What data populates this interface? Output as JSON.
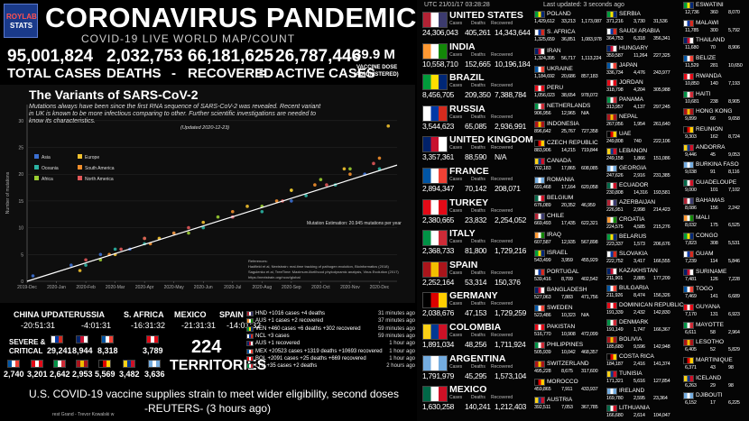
{
  "header": {
    "logo": [
      "ROYLAB",
      "STATS"
    ],
    "title": "CORONAVIRUS PANDEMIC",
    "subtitle": "COVID-19 LIVE WORLD MAP/COUNT"
  },
  "stats": {
    "items": [
      {
        "value": "95,001,824",
        "label": "TOTAL CASES"
      },
      {
        "value": "2,032,753",
        "label": "DEATHS"
      },
      {
        "value": "66,181,625",
        "label": "RECOVERED"
      },
      {
        "value": "26,787,446",
        "label": "ACTIVE CASES"
      }
    ],
    "operators": [
      "-",
      "-",
      "="
    ],
    "vaccine": {
      "value": "39.9 M",
      "label": [
        "VACCINE DOSE",
        "(ADMINISTERED)"
      ]
    }
  },
  "variants": {
    "title": "The Variants of SARS-CoV-2",
    "description": "Mutations always have been since the first RNA sequence of SARS-CoV-2 was revealed. Recent variant in UK is known to be more infectious comparing to other. Further scientific investigations are needed to know its characteristics.",
    "updated": "(Updated 2020-12-23)",
    "note": "Mutation Estimation: 20.945 mutations per year",
    "references": [
      "References:",
      "Hadfield et al, Nextstrain: real-time tracking of pathogen evolution, Bioinformatics (2018)",
      "Sagulenko et al, TreeTime: Maximum-likelihood phylodynamic analysis, Virus Evolution (2017)",
      "https://nextstrain.org/ncov/global"
    ],
    "chart_data": {
      "type": "scatter",
      "y_label": "Number of mutations",
      "xlim": [
        0,
        12.6
      ],
      "ylim": [
        0,
        33
      ],
      "xticks": [
        {
          "value": 0,
          "label": "2019-Dec"
        },
        {
          "value": 1,
          "label": "2020-Jan"
        },
        {
          "value": 2,
          "label": "2020-Feb"
        },
        {
          "value": 3,
          "label": "2020-Mar"
        },
        {
          "value": 4,
          "label": "2020-Apr"
        },
        {
          "value": 5,
          "label": "2020-May"
        },
        {
          "value": 6,
          "label": "2020-Jun"
        },
        {
          "value": 7,
          "label": "2020-Jul"
        },
        {
          "value": 8,
          "label": "2020-Aug"
        },
        {
          "value": 9,
          "label": "2020-Sep"
        },
        {
          "value": 10,
          "label": "2020-Oct"
        },
        {
          "value": 11,
          "label": "2020-Nov"
        },
        {
          "value": 12,
          "label": "2020-Dec"
        }
      ],
      "yticks": [
        0,
        5,
        10,
        15,
        20,
        25,
        30
      ],
      "series": [
        {
          "name": "Asia",
          "color": "#3b6fd1",
          "x": [
            0.2,
            1.5,
            2.5,
            3.5,
            5,
            7,
            9,
            11.5
          ],
          "values": [
            1,
            3,
            5,
            6,
            9,
            12,
            15,
            20
          ]
        },
        {
          "name": "Oceania",
          "color": "#2bb3a3",
          "x": [
            2,
            3,
            4,
            6,
            8,
            9.5,
            10.5,
            12
          ],
          "values": [
            3,
            6,
            7,
            10,
            13,
            16,
            18,
            21
          ]
        },
        {
          "name": "Africa",
          "color": "#9acd32",
          "x": [
            2.5,
            4,
            5.5,
            6.5,
            8,
            9,
            10,
            11
          ],
          "values": [
            4,
            8,
            9,
            12,
            14,
            17,
            19,
            21
          ]
        },
        {
          "name": "Europe",
          "color": "#f2c12e",
          "x": [
            1.8,
            3,
            4.5,
            6,
            7.5,
            9,
            10.8,
            12.3
          ],
          "values": [
            2,
            5,
            8,
            11,
            14,
            17,
            21,
            29
          ]
        },
        {
          "name": "South America",
          "color": "#f28e2b",
          "x": [
            2.8,
            4.2,
            5,
            7,
            8.5,
            9.8,
            11,
            12
          ],
          "values": [
            5,
            7,
            9,
            13,
            15,
            18,
            20,
            23
          ]
        },
        {
          "name": "North America",
          "color": "#e15759",
          "x": [
            2,
            3.2,
            4,
            5.5,
            7,
            8.7,
            10.2,
            11.8
          ],
          "values": [
            4,
            6,
            8,
            10,
            12,
            15,
            18,
            22
          ]
        }
      ],
      "trend": {
        "color": "#ffffff",
        "x": [
          0,
          12.6
        ],
        "values": [
          0,
          21.7
        ]
      }
    }
  },
  "timezones": [
    {
      "name": "CHINA UPDATE",
      "time": "-20:51:31"
    },
    {
      "name": "RUSSIA",
      "time": "-4:01:31"
    },
    {
      "name": "S. AFRICA",
      "time": "-16:31:32"
    },
    {
      "name": "MEXICO",
      "time": "-21:31:31"
    },
    {
      "name": "SPAIN",
      "time": "-14:01:32"
    }
  ],
  "severe": {
    "label": [
      "SEVERE &",
      "CRITICAL"
    ],
    "row1": [
      "29,241",
      "8,944",
      "8,318",
      "3,789"
    ],
    "row2": [
      "2,740",
      "3,201",
      "2,642",
      "2,953",
      "5,569",
      "3,482",
      "3,636"
    ]
  },
  "territories": {
    "value": "224",
    "label": "TERRITORIES"
  },
  "updates": [
    {
      "text": "HND +1016 cases +4 deaths",
      "time": "31 minutes ago"
    },
    {
      "text": "AUS +1 cases +2 recovered",
      "time": "37 minutes ago"
    },
    {
      "text": "VEN +460 cases +6 deaths +302 recovered",
      "time": "59 minutes ago"
    },
    {
      "text": "NCL +3 cases",
      "time": "59 minutes ago"
    },
    {
      "text": "AUS +1 recovered",
      "time": "1 hour ago"
    },
    {
      "text": "MEX +20523 cases +1319 deaths +10693 recovered",
      "time": "1 hour ago"
    },
    {
      "text": "BOL +2091 cases +25 deaths +669 recovered",
      "time": "1 hour ago"
    },
    {
      "text": "LTU +35 cases +2 deaths",
      "time": "2 hours ago"
    }
  ],
  "ticker": {
    "headline": "U.S. COVID-19 vaccine supplies strain to meet wider eligibility, second doses",
    "source": "-REUTERS- (3 hours ago)",
    "footer": "rest Grand - Trevor Kowalski w"
  },
  "panel": {
    "utc": "UTC 21/01/17 03:28:28",
    "updated": "Last updated: 3 seconds ago",
    "labels": [
      "Cases",
      "Deaths",
      "Recovered"
    ]
  },
  "major": [
    {
      "name": "UNITED STATES",
      "cases": "24,306,043",
      "deaths": "405,261",
      "recovered": "14,343,644"
    },
    {
      "name": "INDIA",
      "cases": "10,558,710",
      "deaths": "152,665",
      "recovered": "10,196,184"
    },
    {
      "name": "BRAZIL",
      "cases": "8,456,705",
      "deaths": "209,350",
      "recovered": "7,388,784"
    },
    {
      "name": "RUSSIA",
      "cases": "3,544,623",
      "deaths": "65,085",
      "recovered": "2,936,991"
    },
    {
      "name": "UNITED KINGDOM",
      "cases": "3,357,361",
      "deaths": "88,590",
      "recovered": "N/A"
    },
    {
      "name": "FRANCE",
      "cases": "2,894,347",
      "deaths": "70,142",
      "recovered": "208,071"
    },
    {
      "name": "TURKEY",
      "cases": "2,380,665",
      "deaths": "23,832",
      "recovered": "2,254,052"
    },
    {
      "name": "ITALY",
      "cases": "2,368,733",
      "deaths": "81,800",
      "recovered": "1,729,216"
    },
    {
      "name": "SPAIN",
      "cases": "2,252,164",
      "deaths": "53,314",
      "recovered": "150,376"
    },
    {
      "name": "GERMANY",
      "cases": "2,038,676",
      "deaths": "47,153",
      "recovered": "1,729,259"
    },
    {
      "name": "COLOMBIA",
      "cases": "1,891,034",
      "deaths": "48,256",
      "recovered": "1,711,924"
    },
    {
      "name": "ARGENTINA",
      "cases": "1,791,979",
      "deaths": "45,295",
      "recovered": "1,573,104"
    },
    {
      "name": "MEXICO",
      "cases": "1,630,258",
      "deaths": "140,241",
      "recovered": "1,212,403"
    }
  ],
  "list_a": [
    {
      "name": "POLAND",
      "cases": "1,429,612",
      "deaths": "33,213",
      "recovered": "1,173,087"
    },
    {
      "name": "S. AFRICA",
      "cases": "1,325,659",
      "deaths": "36,851",
      "recovered": "1,083,978"
    },
    {
      "name": "IRAN",
      "cases": "1,324,395",
      "deaths": "56,717",
      "recovered": "1,113,224"
    },
    {
      "name": "UKRAINE",
      "cases": "1,184,692",
      "deaths": "20,686",
      "recovered": "857,183"
    },
    {
      "name": "PERU",
      "cases": "1,056,023",
      "deaths": "38,654",
      "recovered": "978,072"
    },
    {
      "name": "NETHERLANDS",
      "cases": "906,956",
      "deaths": "12,965",
      "recovered": "N/A"
    },
    {
      "name": "INDONESIA",
      "cases": "896,642",
      "deaths": "25,767",
      "recovered": "727,358"
    },
    {
      "name": "CZECH REPUBLIC",
      "cases": "883,906",
      "deaths": "14,215",
      "recovered": "719,844"
    },
    {
      "name": "CANADA",
      "cases": "702,183",
      "deaths": "17,865",
      "recovered": "608,085"
    },
    {
      "name": "ROMANIA",
      "cases": "691,468",
      "deaths": "17,164",
      "recovered": "620,058"
    },
    {
      "name": "BELGIUM",
      "cases": "676,089",
      "deaths": "20,352",
      "recovered": "46,959"
    },
    {
      "name": "CHILE",
      "cases": "669,493",
      "deaths": "17,435",
      "recovered": "622,321"
    },
    {
      "name": "IRAQ",
      "cases": "607,587",
      "deaths": "12,935",
      "recovered": "567,898"
    },
    {
      "name": "ISRAEL",
      "cases": "543,499",
      "deaths": "3,959",
      "recovered": "455,929"
    },
    {
      "name": "PORTUGAL",
      "cases": "539,416",
      "deaths": "8,709",
      "recovered": "402,542"
    },
    {
      "name": "BANGLADESH",
      "cases": "527,063",
      "deaths": "7,883",
      "recovered": "471,756"
    },
    {
      "name": "SWEDEN",
      "cases": "523,486",
      "deaths": "10,323",
      "recovered": "N/A"
    },
    {
      "name": "PAKISTAN",
      "cases": "516,770",
      "deaths": "10,908",
      "recovered": "472,099"
    },
    {
      "name": "PHILIPPINES",
      "cases": "505,939",
      "deaths": "10,042",
      "recovered": "468,357"
    },
    {
      "name": "SWITZERLAND",
      "cases": "495,228",
      "deaths": "8,675",
      "recovered": "317,600"
    },
    {
      "name": "MOROCCO",
      "cases": "459,865",
      "deaths": "7,911",
      "recovered": "433,937"
    },
    {
      "name": "AUSTRIA",
      "cases": "392,511",
      "deaths": "7,053",
      "recovered": "367,785"
    }
  ],
  "list_b": [
    {
      "name": "SERBIA",
      "cases": "371,216",
      "deaths": "3,730",
      "recovered": "31,536"
    },
    {
      "name": "SAUDI ARABIA",
      "cases": "364,753",
      "deaths": "6,318",
      "recovered": "356,341"
    },
    {
      "name": "HUNGARY",
      "cases": "359,587",
      "deaths": "11,264",
      "recovered": "227,325"
    },
    {
      "name": "JAPAN",
      "cases": "336,734",
      "deaths": "4,476",
      "recovered": "243,977"
    },
    {
      "name": "JORDAN",
      "cases": "318,798",
      "deaths": "4,204",
      "recovered": "305,988"
    },
    {
      "name": "PANAMA",
      "cases": "313,957",
      "deaths": "4,137",
      "recovered": "297,245"
    },
    {
      "name": "NEPAL",
      "cases": "267,056",
      "deaths": "1,954",
      "recovered": "261,640"
    },
    {
      "name": "UAE",
      "cases": "249,808",
      "deaths": "740",
      "recovered": "222,106"
    },
    {
      "name": "LEBANON",
      "cases": "249,158",
      "deaths": "1,866",
      "recovered": "151,086"
    },
    {
      "name": "GEORGIA",
      "cases": "247,626",
      "deaths": "2,916",
      "recovered": "231,385"
    },
    {
      "name": "ECUADOR",
      "cases": "230,808",
      "deaths": "14,316",
      "recovered": "193,581"
    },
    {
      "name": "AZERBAIJAN",
      "cases": "226,951",
      "deaths": "2,998",
      "recovered": "214,423"
    },
    {
      "name": "CROATIA",
      "cases": "224,575",
      "deaths": "4,585",
      "recovered": "215,276"
    },
    {
      "name": "BELARUS",
      "cases": "223,337",
      "deaths": "1,573",
      "recovered": "206,676"
    },
    {
      "name": "SLOVAKIA",
      "cases": "222,752",
      "deaths": "3,417",
      "recovered": "166,555"
    },
    {
      "name": "KAZAKHSTAN",
      "cases": "211,901",
      "deaths": "2,885",
      "recovered": "177,209"
    },
    {
      "name": "BULGARIA",
      "cases": "211,926",
      "deaths": "8,474",
      "recovered": "156,326"
    },
    {
      "name": "DOMINICAN REPUBLIC",
      "cases": "191,339",
      "deaths": "2,432",
      "recovered": "142,830"
    },
    {
      "name": "DENMARK",
      "cases": "191,149",
      "deaths": "1,747",
      "recovered": "166,367"
    },
    {
      "name": "BOLIVIA",
      "cases": "185,680",
      "deaths": "9,596",
      "recovered": "142,948"
    },
    {
      "name": "COSTA RICA",
      "cases": "184,187",
      "deaths": "2,416",
      "recovered": "141,374"
    },
    {
      "name": "TUNISIA",
      "cases": "171,321",
      "deaths": "5,616",
      "recovered": "127,854"
    },
    {
      "name": "IRELAND",
      "cases": "169,780",
      "deaths": "2,595",
      "recovered": "23,364"
    },
    {
      "name": "LITHUANIA",
      "cases": "166,680",
      "deaths": "2,614",
      "recovered": "104,047"
    }
  ],
  "list_c": [
    {
      "name": "ESWATINI",
      "cases": "12,736",
      "deaths": "360",
      "recovered": "8,070"
    },
    {
      "name": "MALAWI",
      "cases": "11,785",
      "deaths": "300",
      "recovered": "5,792"
    },
    {
      "name": "THAILAND",
      "cases": "11,680",
      "deaths": "70",
      "recovered": "8,906"
    },
    {
      "name": "BELIZE",
      "cases": "11,529",
      "deaths": "281",
      "recovered": "10,650"
    },
    {
      "name": "RWANDA",
      "cases": "10,850",
      "deaths": "140",
      "recovered": "7,193"
    },
    {
      "name": "HAITI",
      "cases": "10,681",
      "deaths": "238",
      "recovered": "8,905"
    },
    {
      "name": "HONG KONG",
      "cases": "9,899",
      "deaths": "66",
      "recovered": "9,658"
    },
    {
      "name": "REUNION",
      "cases": "9,303",
      "deaths": "162",
      "recovered": "8,724"
    },
    {
      "name": "ANDORRA",
      "cases": "9,446",
      "deaths": "45",
      "recovered": "9,053"
    },
    {
      "name": "BURKINA FASO",
      "cases": "9,038",
      "deaths": "91",
      "recovered": "8,116"
    },
    {
      "name": "GUADELOUPE",
      "cases": "9,000",
      "deaths": "101",
      "recovered": "7,102"
    },
    {
      "name": "BAHAMAS",
      "cases": "8,086",
      "deaths": "156",
      "recovered": "2,242"
    },
    {
      "name": "MALI",
      "cases": "8,032",
      "deaths": "175",
      "recovered": "6,525"
    },
    {
      "name": "CONGO",
      "cases": "7,823",
      "deaths": "308",
      "recovered": "5,531"
    },
    {
      "name": "GUAM",
      "cases": "7,239",
      "deaths": "114",
      "recovered": "5,846"
    },
    {
      "name": "SURINAME",
      "cases": "7,481",
      "deaths": "126",
      "recovered": "7,228"
    },
    {
      "name": "TOGO",
      "cases": "7,469",
      "deaths": "141",
      "recovered": "6,689"
    },
    {
      "name": "GUYANA",
      "cases": "7,170",
      "deaths": "131",
      "recovered": "6,923"
    },
    {
      "name": "MAYOTTE",
      "cases": "6,611",
      "deaths": "58",
      "recovered": "2,964"
    },
    {
      "name": "LESOTHO",
      "cases": "6,405",
      "deaths": "52",
      "recovered": "5,829"
    },
    {
      "name": "MARTINIQUE",
      "cases": "6,371",
      "deaths": "43",
      "recovered": "98"
    },
    {
      "name": "ICELAND",
      "cases": "6,263",
      "deaths": "29",
      "recovered": "98"
    },
    {
      "name": "DJIBOUTI",
      "cases": "6,152",
      "deaths": "17",
      "recovered": "6,225"
    }
  ]
}
